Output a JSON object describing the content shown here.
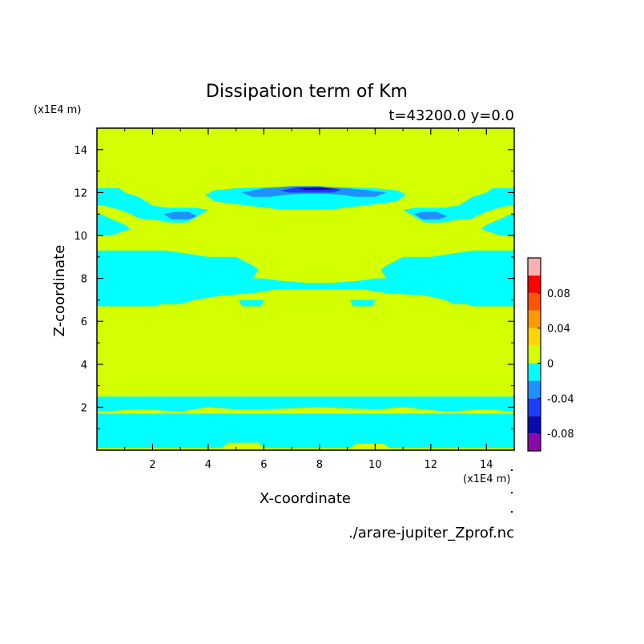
{
  "chart_data": {
    "type": "heatmap",
    "title": "Dissipation term of Km",
    "subtitle": "t=43200.0 y=0.0",
    "xlabel": "X-coordinate",
    "ylabel": "Z-coordinate",
    "x_unit": "(x1E4 m)",
    "y_unit": "(x1E4 m)",
    "xlim": [
      0,
      15
    ],
    "ylim": [
      0,
      15
    ],
    "x_ticks": [
      2,
      4,
      6,
      8,
      10,
      12,
      14
    ],
    "y_ticks": [
      2,
      4,
      6,
      8,
      10,
      12,
      14
    ],
    "filename": "./arare-jupiter_Zprof.nc",
    "colorbar": {
      "labels": [
        {
          "value": 0.08,
          "text": "0.08"
        },
        {
          "value": 0.04,
          "text": "0.04"
        },
        {
          "value": 0,
          "text": "0"
        },
        {
          "value": -0.04,
          "text": "-0.04"
        },
        {
          "value": -0.08,
          "text": "-0.08"
        }
      ],
      "levels": [
        {
          "from": -0.1,
          "to": -0.08,
          "color": "#8a0aa8"
        },
        {
          "from": -0.08,
          "to": -0.06,
          "color": "#0a0ab4"
        },
        {
          "from": -0.06,
          "to": -0.04,
          "color": "#1e3cff"
        },
        {
          "from": -0.04,
          "to": -0.02,
          "color": "#1e90ff"
        },
        {
          "from": -0.02,
          "to": 0,
          "color": "#00ffff"
        },
        {
          "from": 0,
          "to": 0.02,
          "color": "#d4ff00"
        },
        {
          "from": 0.02,
          "to": 0.04,
          "color": "#ffd700"
        },
        {
          "from": 0.04,
          "to": 0.06,
          "color": "#ff9900"
        },
        {
          "from": 0.06,
          "to": 0.08,
          "color": "#ff5500"
        },
        {
          "from": 0.08,
          "to": 0.1,
          "color": "#ff0000"
        },
        {
          "from": 0.1,
          "to": 0.12,
          "color": "#ffb0b0"
        }
      ]
    },
    "background_level_color": "#d4ff00",
    "regions": [
      {
        "level": -0.01,
        "color": "#00ffff",
        "points": [
          [
            0.0,
            2.5
          ],
          [
            15.0,
            2.5
          ],
          [
            15.0,
            1.8
          ],
          [
            14.0,
            1.9
          ],
          [
            12.5,
            1.8
          ],
          [
            11.0,
            2.0
          ],
          [
            10.0,
            1.9
          ],
          [
            8.0,
            2.0
          ],
          [
            6.0,
            1.9
          ],
          [
            5.0,
            1.9
          ],
          [
            4.0,
            2.0
          ],
          [
            3.0,
            1.8
          ],
          [
            1.5,
            1.9
          ],
          [
            0.0,
            1.8
          ]
        ]
      },
      {
        "level": -0.01,
        "color": "#00ffff",
        "points": [
          [
            0.0,
            1.7
          ],
          [
            15.0,
            1.7
          ],
          [
            15.0,
            0.1
          ],
          [
            10.5,
            0.1
          ],
          [
            10.3,
            0.3
          ],
          [
            9.3,
            0.3
          ],
          [
            9.1,
            0.1
          ],
          [
            6.0,
            0.1
          ],
          [
            5.8,
            0.35
          ],
          [
            4.7,
            0.35
          ],
          [
            4.5,
            0.1
          ],
          [
            0.0,
            0.1
          ]
        ]
      },
      {
        "level": -0.01,
        "color": "#00ffff",
        "points": [
          [
            0.0,
            9.3
          ],
          [
            2.5,
            9.3
          ],
          [
            4.0,
            9.0
          ],
          [
            5.0,
            9.0
          ],
          [
            5.3,
            8.8
          ],
          [
            5.6,
            8.6
          ],
          [
            5.8,
            8.4
          ],
          [
            5.6,
            8.0
          ],
          [
            6.0,
            8.0
          ],
          [
            6.5,
            7.9
          ],
          [
            7.5,
            7.8
          ],
          [
            8.5,
            7.8
          ],
          [
            9.5,
            7.9
          ],
          [
            10.0,
            8.0
          ],
          [
            10.4,
            8.0
          ],
          [
            10.2,
            8.4
          ],
          [
            10.4,
            8.6
          ],
          [
            10.7,
            8.8
          ],
          [
            11.0,
            9.0
          ],
          [
            12.0,
            9.0
          ],
          [
            13.5,
            9.3
          ],
          [
            15.0,
            9.3
          ],
          [
            15.0,
            6.7
          ],
          [
            14.0,
            6.7
          ],
          [
            13.5,
            6.7
          ],
          [
            13.3,
            6.8
          ],
          [
            12.8,
            6.8
          ],
          [
            12.5,
            7.0
          ],
          [
            11.8,
            7.2
          ],
          [
            10.5,
            7.3
          ],
          [
            9.5,
            7.5
          ],
          [
            8.0,
            7.5
          ],
          [
            6.5,
            7.5
          ],
          [
            5.5,
            7.3
          ],
          [
            4.5,
            7.2
          ],
          [
            3.5,
            7.0
          ],
          [
            3.0,
            6.8
          ],
          [
            2.3,
            6.8
          ],
          [
            2.1,
            6.7
          ],
          [
            0.0,
            6.7
          ]
        ]
      },
      {
        "level": -0.01,
        "color": "#00ffff",
        "points": [
          [
            5.1,
            7.0
          ],
          [
            6.0,
            7.0
          ],
          [
            5.9,
            6.7
          ],
          [
            5.2,
            6.7
          ]
        ]
      },
      {
        "level": -0.01,
        "color": "#00ffff",
        "points": [
          [
            9.1,
            7.0
          ],
          [
            10.0,
            7.0
          ],
          [
            9.9,
            6.7
          ],
          [
            9.2,
            6.7
          ]
        ]
      },
      {
        "level": -0.01,
        "color": "#00ffff",
        "points": [
          [
            0.0,
            12.2
          ],
          [
            0.8,
            12.2
          ],
          [
            1.0,
            12.0
          ],
          [
            1.5,
            11.8
          ],
          [
            2.0,
            11.4
          ],
          [
            2.5,
            11.3
          ],
          [
            3.5,
            11.3
          ],
          [
            4.0,
            11.2
          ],
          [
            3.5,
            10.8
          ],
          [
            3.2,
            10.6
          ],
          [
            2.6,
            10.6
          ],
          [
            2.2,
            10.7
          ],
          [
            1.5,
            10.8
          ],
          [
            1.2,
            11.0
          ],
          [
            0.8,
            11.2
          ],
          [
            0.2,
            11.4
          ],
          [
            0.0,
            11.4
          ]
        ]
      },
      {
        "level": -0.01,
        "color": "#00ffff",
        "points": [
          [
            0.1,
            11.0
          ],
          [
            1.0,
            10.5
          ],
          [
            1.2,
            10.3
          ],
          [
            0.5,
            10.0
          ],
          [
            0.0,
            10.0
          ],
          [
            0.0,
            11.0
          ]
        ]
      },
      {
        "level": -0.01,
        "color": "#00ffff",
        "points": [
          [
            15.0,
            12.2
          ],
          [
            14.2,
            12.2
          ],
          [
            14.0,
            12.0
          ],
          [
            13.5,
            11.8
          ],
          [
            13.0,
            11.4
          ],
          [
            12.5,
            11.3
          ],
          [
            11.5,
            11.3
          ],
          [
            11.0,
            11.2
          ],
          [
            11.5,
            10.8
          ],
          [
            11.8,
            10.6
          ],
          [
            12.4,
            10.6
          ],
          [
            12.8,
            10.7
          ],
          [
            13.5,
            10.8
          ],
          [
            13.8,
            11.0
          ],
          [
            14.2,
            11.2
          ],
          [
            14.8,
            11.4
          ],
          [
            15.0,
            11.4
          ]
        ]
      },
      {
        "level": -0.01,
        "color": "#00ffff",
        "points": [
          [
            14.9,
            11.0
          ],
          [
            14.0,
            10.5
          ],
          [
            13.8,
            10.3
          ],
          [
            14.5,
            10.0
          ],
          [
            15.0,
            10.0
          ],
          [
            15.0,
            11.0
          ]
        ]
      },
      {
        "level": -0.01,
        "color": "#00ffff",
        "points": [
          [
            3.9,
            11.9
          ],
          [
            4.2,
            12.1
          ],
          [
            5.0,
            12.2
          ],
          [
            6.0,
            12.25
          ],
          [
            9.0,
            12.25
          ],
          [
            10.0,
            12.2
          ],
          [
            10.8,
            12.1
          ],
          [
            11.1,
            11.9
          ],
          [
            10.8,
            11.6
          ],
          [
            10.3,
            11.5
          ],
          [
            9.6,
            11.4
          ],
          [
            9.0,
            11.3
          ],
          [
            8.3,
            11.2
          ],
          [
            7.5,
            11.2
          ],
          [
            6.7,
            11.2
          ],
          [
            6.0,
            11.3
          ],
          [
            5.4,
            11.4
          ],
          [
            4.7,
            11.5
          ],
          [
            4.2,
            11.6
          ]
        ]
      },
      {
        "level": -0.03,
        "color": "#1e90ff",
        "points": [
          [
            2.4,
            11.0
          ],
          [
            2.8,
            11.1
          ],
          [
            3.3,
            11.1
          ],
          [
            3.6,
            10.9
          ],
          [
            3.3,
            10.75
          ],
          [
            2.7,
            10.75
          ]
        ]
      },
      {
        "level": -0.03,
        "color": "#1e90ff",
        "points": [
          [
            11.4,
            11.0
          ],
          [
            11.7,
            11.1
          ],
          [
            12.2,
            11.1
          ],
          [
            12.6,
            10.9
          ],
          [
            12.3,
            10.75
          ],
          [
            11.7,
            10.75
          ]
        ]
      },
      {
        "level": -0.03,
        "color": "#1e90ff",
        "points": [
          [
            5.2,
            12.0
          ],
          [
            6.0,
            12.2
          ],
          [
            7.0,
            12.3
          ],
          [
            8.0,
            12.3
          ],
          [
            9.0,
            12.2
          ],
          [
            9.8,
            12.1
          ],
          [
            10.4,
            12.0
          ],
          [
            10.0,
            11.8
          ],
          [
            9.3,
            11.8
          ],
          [
            8.8,
            11.9
          ],
          [
            8.2,
            11.95
          ],
          [
            7.5,
            11.95
          ],
          [
            6.8,
            11.9
          ],
          [
            6.2,
            11.8
          ],
          [
            5.6,
            11.8
          ]
        ]
      },
      {
        "level": -0.05,
        "color": "#1e3cff",
        "points": [
          [
            6.6,
            12.1
          ],
          [
            7.2,
            12.25
          ],
          [
            8.0,
            12.25
          ],
          [
            8.8,
            12.15
          ],
          [
            8.5,
            12.0
          ],
          [
            7.5,
            12.0
          ],
          [
            6.9,
            12.0
          ]
        ]
      },
      {
        "level": -0.07,
        "color": "#0a0ab4",
        "points": [
          [
            7.2,
            12.2
          ],
          [
            8.0,
            12.25
          ],
          [
            8.6,
            12.15
          ],
          [
            8.0,
            12.12
          ],
          [
            7.5,
            12.12
          ]
        ]
      }
    ]
  }
}
